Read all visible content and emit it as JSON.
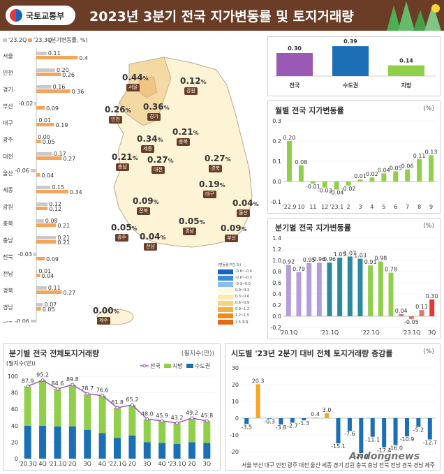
{
  "header": {
    "logo_text": "국토교통부",
    "title": "2023년 3분기 전국 지가변동률 및 토지거래량"
  },
  "colors": {
    "header": "#6b3d26",
    "q2": "#c9c9c9",
    "q3": "#f5a55a",
    "purple": "#9b59b6",
    "blue": "#1a6fb5",
    "green": "#8fcf4a",
    "teal": "#2b8aa0",
    "red": "#e53935",
    "orange": "#f5a522"
  },
  "left_chart": {
    "legend": [
      "'23.2Q",
      "'23.3Q",
      "(분기변동률, %)"
    ],
    "rows": [
      {
        "region": "서울",
        "q2": 0.11,
        "q3": 0.44
      },
      {
        "region": "인천",
        "q2": 0.2,
        "q3": 0.26
      },
      {
        "region": "경기",
        "q2": 0.16,
        "q3": 0.36
      },
      {
        "region": "부산",
        "q2": -0.02,
        "q3": 0.09
      },
      {
        "region": "대구",
        "q2": 0.01,
        "q3": 0.19
      },
      {
        "region": "광주",
        "q2": 0.0,
        "q3": 0.05
      },
      {
        "region": "대전",
        "q2": 0.17,
        "q3": 0.27
      },
      {
        "region": "울산",
        "q2": -0.06,
        "q3": 0.04
      },
      {
        "region": "세종",
        "q2": 0.15,
        "q3": 0.34
      },
      {
        "region": "강원",
        "q2": 0.12,
        "q3": 0.12
      },
      {
        "region": "충북",
        "q2": 0.08,
        "q3": 0.21
      },
      {
        "region": "충남",
        "q2": 0.21,
        "q3": 0.21
      },
      {
        "region": "전북",
        "q2": -0.03,
        "q3": 0.09
      },
      {
        "region": "전남",
        "q2": 0.01,
        "q3": 0.04
      },
      {
        "region": "경북",
        "q2": 0.11,
        "q3": 0.27
      },
      {
        "region": "경남",
        "q2": 0.07,
        "q3": 0.05
      },
      {
        "region": "제주",
        "q2": -0.06,
        "q3": 0.0
      }
    ],
    "q2_labels": [
      "0.11",
      "0.20",
      "0.16",
      "-0.02",
      "0.01",
      "0.00",
      "0.17",
      "-0.06",
      "0.15",
      "0.12",
      "0.08",
      "0.21",
      "-0.03",
      "0.01",
      "0.11",
      "0.07",
      "-0.06"
    ],
    "q3_labels": [
      "0.44",
      "0.26",
      "0.36",
      "0.09",
      "0.19",
      "0.05",
      "0.27",
      "0.04",
      "0.34",
      "0.12",
      "0.21",
      "0.21",
      "0.09",
      "0.04",
      "0.27",
      "0.05",
      "0.00"
    ]
  },
  "map": {
    "regions": [
      {
        "name": "서울",
        "value": "0.44"
      },
      {
        "name": "강원",
        "value": "0.12"
      },
      {
        "name": "인천",
        "value": "0.26"
      },
      {
        "name": "경기",
        "value": "0.36"
      },
      {
        "name": "충북",
        "value": "0.21"
      },
      {
        "name": "세종",
        "value": "0.34"
      },
      {
        "name": "충남",
        "value": "0.21"
      },
      {
        "name": "대전",
        "value": "0.27"
      },
      {
        "name": "경북",
        "value": "0.27"
      },
      {
        "name": "대구",
        "value": "0.19"
      },
      {
        "name": "전북",
        "value": "0.09"
      },
      {
        "name": "울산",
        "value": "0.04"
      },
      {
        "name": "광주",
        "value": "0.05"
      },
      {
        "name": "경남",
        "value": "0.05"
      },
      {
        "name": "부산",
        "value": "0.09"
      },
      {
        "name": "전남",
        "value": "0.04"
      },
      {
        "name": "제주",
        "value": "0.00"
      }
    ],
    "percent": "%",
    "legend_title": "(변동률구간,%)",
    "legend": [
      "-0.6~-0.9",
      "-0.6~-0.3",
      "-0.3~0.0",
      "0.0~0.3",
      "0.3~0.6",
      "0.6~0.9",
      "0.9~1.2",
      "1.2~1.5",
      "1.5 초과"
    ]
  },
  "summary": {
    "items": [
      {
        "label": "전국",
        "value": 0.3,
        "text": "0.30"
      },
      {
        "label": "수도권",
        "value": 0.39,
        "text": "0.39"
      },
      {
        "label": "지방",
        "value": 0.14,
        "text": "0.14"
      }
    ]
  },
  "chart_data": [
    {
      "type": "bar",
      "title": "월별 전국 지가변동률",
      "unit": "(%)",
      "categories": [
        "'22.9",
        "10",
        "11",
        "12",
        "'23.1",
        "2",
        "3",
        "4",
        "5",
        "6",
        "7",
        "8",
        "9"
      ],
      "values": [
        0.2,
        0.08,
        -0.01,
        -0.03,
        -0.04,
        -0.02,
        0.01,
        0.02,
        0.04,
        0.05,
        0.06,
        0.11,
        0.13
      ],
      "labels": [
        "0.20",
        "0.08",
        "-0.01",
        "-0.03",
        "-0.04",
        "-0.02",
        "0.01",
        "0.02",
        "0.04",
        "0.05",
        "0.06",
        "0.11",
        "0.13"
      ],
      "ylim": [
        -0.1,
        0.3
      ],
      "yticks": [
        "0.3",
        "0.2",
        "0.1",
        "0.0",
        "-0.1"
      ]
    },
    {
      "type": "bar",
      "title": "분기별 전국 지가변동률",
      "unit": "(%)",
      "categories": [
        "'20.1Q",
        "",
        "",
        "",
        "'21.1Q",
        "",
        "",
        "",
        "'22.1Q",
        "",
        "",
        "",
        "'23.1Q",
        "",
        "3Q"
      ],
      "values": [
        0.92,
        0.79,
        0.95,
        0.96,
        0.96,
        1.05,
        1.07,
        1.03,
        0.91,
        0.98,
        0.78,
        0.04,
        -0.05,
        0.11,
        0.3
      ],
      "labels": [
        "0.92",
        "0.79",
        "0.95",
        "0.96",
        "0.96",
        "1.05",
        "1.07",
        "1.03",
        "0.91",
        "0.98",
        "0.78",
        "0.04",
        "-0.05",
        "0.11",
        "0.30"
      ],
      "ylim": [
        -0.2,
        1.4
      ],
      "yticks": [
        "1.4",
        "1.2",
        "1.0",
        "0.8",
        "0.6",
        "0.4",
        "0.2",
        "0.0",
        "-0.2"
      ]
    },
    {
      "type": "bar",
      "title": "분기별 전국 전체토지거래량",
      "unit": "(필지수(만))",
      "categories": [
        "'20.3Q",
        "4Q",
        "'21.1Q",
        "2Q",
        "3Q",
        "4Q",
        "'22.1Q",
        "2Q",
        "3Q",
        "4Q",
        "'23.1Q",
        "2Q",
        "3Q"
      ],
      "series": [
        {
          "name": "전국",
          "values": [
            87.9,
            95.2,
            84.6,
            89.8,
            78.7,
            76.6,
            61.8,
            65.2,
            48.0,
            45.9,
            43.2,
            49.2,
            45.8
          ]
        },
        {
          "name": "지방",
          "values": [
            47.9,
            55.2,
            45.6,
            50.8,
            43.7,
            45.6,
            36.8,
            37.2,
            28.0,
            26.9,
            25.2,
            29.2,
            26.8
          ]
        },
        {
          "name": "수도권",
          "values": [
            40,
            40,
            39,
            39,
            35,
            31,
            25,
            28,
            20,
            19,
            18,
            20,
            19
          ]
        }
      ],
      "labels": [
        "87.9",
        "95.2",
        "84.6",
        "89.8",
        "78.7",
        "76.6",
        "61.8",
        "65.2",
        "48.0",
        "45.9",
        "43.2",
        "49.2",
        "45.8"
      ],
      "ylim": [
        0,
        100
      ],
      "yticks": [
        "100",
        "80",
        "60",
        "40",
        "20",
        "0"
      ],
      "ylabel": "(필지수(만))"
    },
    {
      "type": "bar",
      "title": "시도별 '23년 2분기 대비 전체 토지거래량 증감률",
      "unit": "(%)",
      "categories": [
        "서울",
        "부산",
        "대구",
        "인천",
        "광주",
        "대전",
        "울산",
        "세종",
        "경기",
        "강원",
        "충북",
        "충남",
        "전북",
        "전남",
        "경북",
        "경남",
        "제주"
      ],
      "values": [
        -3.5,
        20.3,
        -0.3,
        -3.8,
        -2.7,
        -1.3,
        0.4,
        3.0,
        -15.1,
        -7.6,
        -20.9,
        -11.1,
        -17.4,
        -16.0,
        -10.9,
        -5.2,
        -12.7
      ],
      "labels": [
        "-3.5",
        "20.3",
        "-0.3",
        "-3.8",
        "-2.7",
        "-1.3",
        "0.4",
        "3.0",
        "-15.1",
        "-7.6",
        "-20.9",
        "-11.1",
        "-17.4",
        "-16.0",
        "-10.9",
        "-5.2",
        "-12.7"
      ],
      "ylim": [
        -25,
        30
      ],
      "yticks": [
        "30",
        "20",
        "10",
        "0",
        "-10",
        "-20"
      ]
    }
  ],
  "watermark": "Andongnews"
}
